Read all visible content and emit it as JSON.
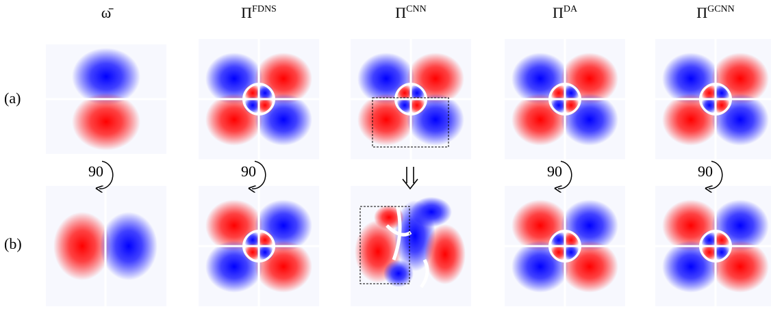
{
  "headers": [
    {
      "base": "ω̄"
    },
    {
      "base": "Π",
      "sup": "FDNS"
    },
    {
      "base": "Π",
      "sup": "CNN"
    },
    {
      "base": "Π",
      "sup": "DA"
    },
    {
      "base": "Π",
      "sup": "GCNN"
    }
  ],
  "rows": [
    {
      "label": "(a)"
    },
    {
      "label": "(b)"
    }
  ],
  "rotation_labels": [
    "90",
    "90",
    "90",
    "90"
  ]
}
